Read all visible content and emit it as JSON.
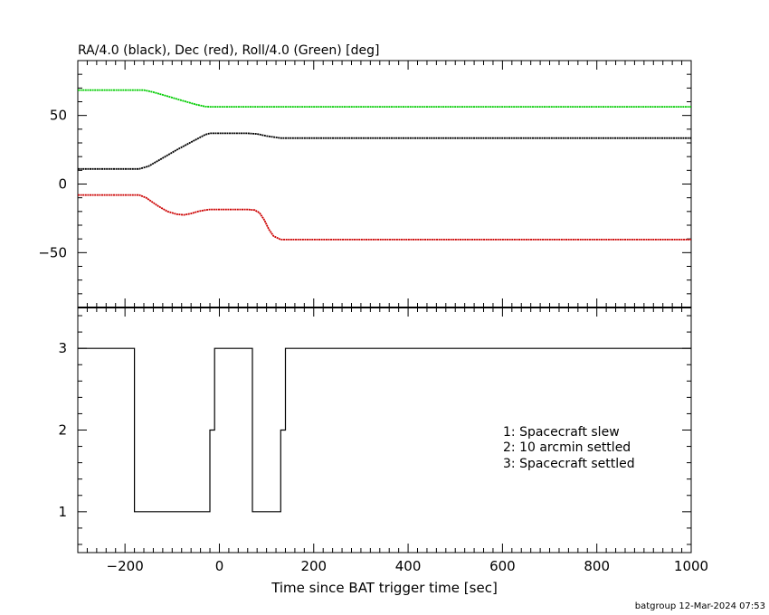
{
  "chart_data": [
    {
      "type": "line",
      "title": "RA/4.0 (black), Dec (red), Roll/4.0 (Green) [deg]",
      "xlim": [
        -300,
        1000
      ],
      "ylim": [
        -90,
        90
      ],
      "y_ticks": [
        -50,
        0,
        50
      ],
      "grid": false,
      "series": [
        {
          "color": "#000000",
          "x": [
            -300,
            -170,
            -150,
            -120,
            -90,
            -60,
            -30,
            -20,
            0,
            60,
            80,
            100,
            130,
            1000
          ],
          "y": [
            11,
            11,
            13,
            19,
            25,
            30.5,
            36,
            37,
            37,
            37,
            36.5,
            35,
            33.5,
            33.5
          ]
        },
        {
          "color": "#cc0000",
          "x": [
            -300,
            -170,
            -155,
            -130,
            -110,
            -90,
            -75,
            -60,
            -45,
            -30,
            -20,
            0,
            60,
            75,
            85,
            95,
            105,
            115,
            130,
            1000
          ],
          "y": [
            -8,
            -8,
            -10,
            -16,
            -20,
            -22,
            -22.5,
            -21.5,
            -20,
            -19,
            -18.5,
            -18.5,
            -18.5,
            -19,
            -21,
            -26,
            -33,
            -38,
            -40.5,
            -40.5
          ]
        },
        {
          "color": "#00cc00",
          "x": [
            -300,
            -160,
            -140,
            -110,
            -80,
            -50,
            -30,
            -20,
            0,
            150,
            1000
          ],
          "y": [
            68.5,
            68.5,
            67,
            64,
            61,
            58,
            56.5,
            56.3,
            56.3,
            56.3,
            56.3
          ]
        }
      ]
    },
    {
      "type": "line",
      "xlabel": "Time since BAT trigger time [sec]",
      "xlim": [
        -300,
        1000
      ],
      "ylim": [
        0.5,
        3.5
      ],
      "x_ticks": [
        -200,
        0,
        200,
        400,
        600,
        800,
        1000
      ],
      "y_ticks": [
        1,
        2,
        3
      ],
      "step": true,
      "series": [
        {
          "color": "#000000",
          "x": [
            -300,
            -180,
            -180,
            -20,
            -20,
            -10,
            -10,
            70,
            70,
            130,
            130,
            140,
            140,
            1000
          ],
          "y": [
            3,
            3,
            1,
            1,
            2,
            2,
            3,
            3,
            1,
            1,
            2,
            2,
            3,
            3
          ]
        }
      ],
      "annotations": [
        "1: Spacecraft slew",
        "2: 10 arcmin settled",
        "3: Spacecraft settled"
      ]
    }
  ],
  "footer": "batgroup 12-Mar-2024 07:53"
}
